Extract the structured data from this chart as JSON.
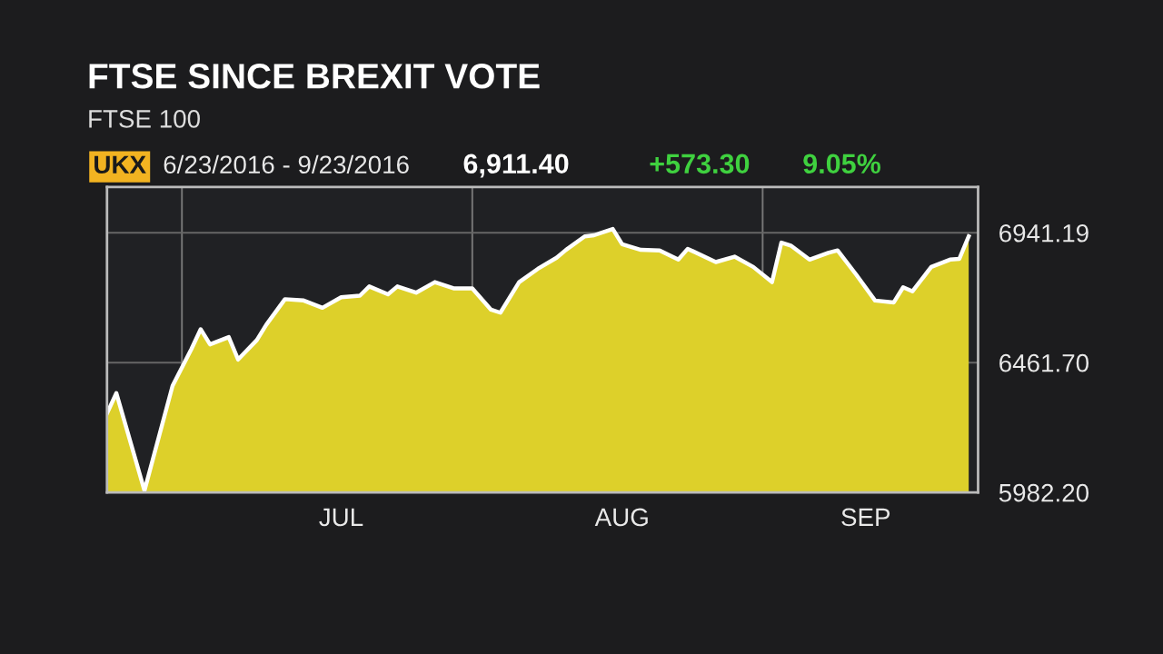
{
  "chart_data": {
    "type": "area",
    "title": "FTSE SINCE BREXIT VOTE",
    "subtitle": "FTSE 100",
    "annotations": [
      "UKX",
      "6/23/2016 - 9/23/2016",
      "6,911.40",
      "+573.30",
      "9.05%"
    ],
    "x": [
      "2016-06-23",
      "2016-06-24",
      "2016-06-27",
      "2016-06-30",
      "2016-07-02",
      "2016-07-03",
      "2016-07-04",
      "2016-07-06",
      "2016-07-07",
      "2016-07-09",
      "2016-07-10",
      "2016-07-12",
      "2016-07-14",
      "2016-07-16",
      "2016-07-18",
      "2016-07-20",
      "2016-07-21",
      "2016-07-23",
      "2016-07-24",
      "2016-07-26",
      "2016-07-28",
      "2016-07-30",
      "2016-08-01",
      "2016-08-03",
      "2016-08-04",
      "2016-08-06",
      "2016-08-08",
      "2016-08-10",
      "2016-08-11",
      "2016-08-13",
      "2016-08-14",
      "2016-08-16",
      "2016-08-17",
      "2016-08-19",
      "2016-08-21",
      "2016-08-23",
      "2016-08-24",
      "2016-08-27",
      "2016-08-29",
      "2016-08-31",
      "2016-09-02",
      "2016-09-03",
      "2016-09-04",
      "2016-09-06",
      "2016-09-08",
      "2016-09-09",
      "2016-09-11",
      "2016-09-13",
      "2016-09-15",
      "2016-09-16",
      "2016-09-17",
      "2016-09-19",
      "2016-09-21",
      "2016-09-22",
      "2016-09-23"
    ],
    "series": [
      {
        "color": "#ddd02a",
        "values": [
          6274,
          6349,
          5989,
          6376,
          6511,
          6585,
          6529,
          6556,
          6473,
          6545,
          6601,
          6696,
          6691,
          6664,
          6703,
          6709,
          6743,
          6714,
          6743,
          6720,
          6759,
          6736,
          6736,
          6657,
          6646,
          6759,
          6808,
          6849,
          6878,
          6928,
          6932,
          6955,
          6899,
          6878,
          6876,
          6842,
          6882,
          6833,
          6853,
          6815,
          6759,
          6905,
          6894,
          6842,
          6867,
          6876,
          6786,
          6691,
          6684,
          6740,
          6725,
          6815,
          6842,
          6845,
          6928
        ]
      }
    ],
    "xlim": [
      "2016-06-23",
      "2016-09-24"
    ],
    "xticks": [
      {
        "value": "2016-07-01",
        "label": null
      },
      {
        "value": "2016-08-01",
        "label": null
      },
      {
        "value": "2016-09-01",
        "label": null
      },
      {
        "value": "2016-07-18",
        "label": "JUL"
      },
      {
        "value": "2016-08-17",
        "label": "AUG"
      },
      {
        "value": "2016-09-12",
        "label": "SEP"
      }
    ],
    "ylim": [
      5982.2,
      7110
    ],
    "yticks": [
      {
        "value": 5982.2,
        "label": "5982.20"
      },
      {
        "value": 6461.7,
        "label": "6461.70"
      },
      {
        "value": 6941.19,
        "label": "6941.19"
      }
    ],
    "grid": true
  }
}
